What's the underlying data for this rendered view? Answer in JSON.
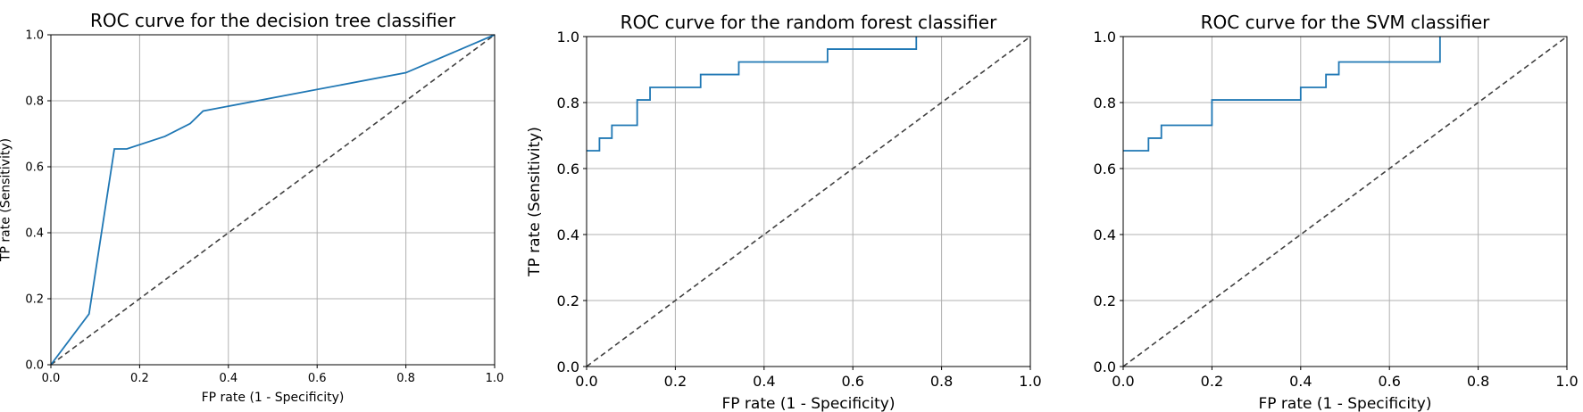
{
  "chart_data": [
    {
      "type": "line",
      "title": "ROC curve for the decision tree classifier",
      "xlabel": "FP rate (1 - Specificity)",
      "ylabel": "TP rate (Sensitivity)",
      "xlim": [
        0,
        1
      ],
      "ylim": [
        0,
        1
      ],
      "xticks": [
        "0.0",
        "0.2",
        "0.4",
        "0.6",
        "0.8",
        "1.0"
      ],
      "yticks": [
        "0.0",
        "0.2",
        "0.4",
        "0.6",
        "0.8",
        "1.0"
      ],
      "grid": true,
      "colors": {
        "curve": "#1f77b4",
        "diagonal": "#404040"
      },
      "series": [
        {
          "x": [
            0.0,
            0.086,
            0.143,
            0.171,
            0.257,
            0.314,
            0.343,
            0.8,
            1.0
          ],
          "y": [
            0.0,
            0.154,
            0.654,
            0.654,
            0.692,
            0.731,
            0.769,
            0.885,
            1.0
          ]
        }
      ],
      "diagonal": {
        "x": [
          0,
          1
        ],
        "y": [
          0,
          1
        ],
        "style": "dashed"
      }
    },
    {
      "type": "line",
      "title": "ROC curve for the random forest classifier",
      "xlabel": "FP rate (1 - Specificity)",
      "ylabel": "TP rate (Sensitivity)",
      "xlim": [
        0,
        1
      ],
      "ylim": [
        0,
        1
      ],
      "xticks": [
        "0.0",
        "0.2",
        "0.4",
        "0.6",
        "0.8",
        "1.0"
      ],
      "yticks": [
        "0.0",
        "0.2",
        "0.4",
        "0.6",
        "0.8",
        "1.0"
      ],
      "grid": true,
      "colors": {
        "curve": "#1f77b4",
        "diagonal": "#404040"
      },
      "series": [
        {
          "x": [
            0.0,
            0.029,
            0.029,
            0.057,
            0.057,
            0.114,
            0.114,
            0.143,
            0.143,
            0.257,
            0.257,
            0.343,
            0.343,
            0.543,
            0.543,
            0.743,
            0.743
          ],
          "y": [
            0.654,
            0.654,
            0.692,
            0.692,
            0.731,
            0.731,
            0.808,
            0.808,
            0.846,
            0.846,
            0.885,
            0.885,
            0.923,
            0.923,
            0.962,
            0.962,
            1.0
          ]
        }
      ],
      "diagonal": {
        "x": [
          0,
          1
        ],
        "y": [
          0,
          1
        ],
        "style": "dashed"
      }
    },
    {
      "type": "line",
      "title": "ROC curve for the SVM classifier",
      "xlabel": "FP rate (1 - Specificity)",
      "ylabel": "",
      "xlim": [
        0,
        1
      ],
      "ylim": [
        0,
        1
      ],
      "xticks": [
        "0.0",
        "0.2",
        "0.4",
        "0.6",
        "0.8",
        "1.0"
      ],
      "yticks": [
        "0.0",
        "0.2",
        "0.4",
        "0.6",
        "0.8",
        "1.0"
      ],
      "grid": true,
      "colors": {
        "curve": "#1f77b4",
        "diagonal": "#404040"
      },
      "series": [
        {
          "x": [
            0.0,
            0.057,
            0.057,
            0.086,
            0.086,
            0.2,
            0.2,
            0.4,
            0.4,
            0.457,
            0.457,
            0.486,
            0.486,
            0.714,
            0.714
          ],
          "y": [
            0.654,
            0.654,
            0.692,
            0.692,
            0.731,
            0.731,
            0.808,
            0.808,
            0.846,
            0.846,
            0.885,
            0.885,
            0.923,
            0.923,
            1.0
          ]
        }
      ],
      "diagonal": {
        "x": [
          0,
          1
        ],
        "y": [
          0,
          1
        ],
        "style": "dashed"
      }
    }
  ]
}
